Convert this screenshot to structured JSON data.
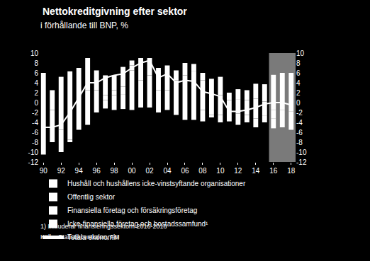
{
  "chart_data": {
    "type": "bar",
    "stacked": true,
    "title": "Nettokreditgivning efter sektor",
    "subtitle": "i förhållande till BNP, %",
    "annotations": [
      "1) Inkluderar finansieringssektorn 2016-2018",
      "Källa: Statistikcentralen, FM"
    ],
    "categories": [
      "90",
      null,
      "92",
      null,
      "94",
      null,
      "96",
      null,
      "98",
      null,
      "00",
      null,
      "02",
      null,
      "04",
      null,
      "06",
      null,
      "08",
      null,
      "10",
      null,
      "12",
      null,
      "14",
      null,
      "16",
      null,
      "18"
    ],
    "shaded_from": "16",
    "series": [
      {
        "name": "Hushåll och hushållens icke-vinstsyftande organisationer",
        "type": "bar",
        "color": "#ffffff",
        "values": [
          -3,
          1,
          3,
          4,
          2,
          2.5,
          1,
          0.5,
          -1.5,
          -1.3,
          -1.5,
          -1,
          -1,
          -2,
          -1.5,
          -2.5,
          -3.5,
          -3.5,
          -1.5,
          2,
          1.5,
          0.5,
          0.7,
          0.5,
          0.8,
          0.2,
          -1.5,
          -1.5,
          -1.8
        ]
      },
      {
        "name": "Offentlig sektor",
        "type": "bar",
        "color": "#ffffff",
        "values": [
          5,
          -1.5,
          -5.5,
          -7.5,
          -5.5,
          -4.5,
          -2,
          -1.2,
          1.5,
          1.7,
          6.5,
          4.5,
          4,
          2.5,
          2.5,
          3,
          4,
          5,
          4.5,
          -2.5,
          -2.5,
          -1,
          -2.2,
          -2.5,
          -3.2,
          -2.7,
          -1.7,
          -1.5,
          -1.2
        ]
      },
      {
        "name": "Finansiella företag och försäkringsföretag",
        "type": "bar",
        "color": "#ffffff",
        "values": [
          1,
          1.5,
          2.2,
          2.3,
          1,
          1.5,
          1.5,
          1,
          1,
          1.5,
          1,
          1.5,
          1.5,
          1.5,
          1.5,
          1.5,
          1.5,
          1.3,
          1.5,
          2.8,
          3.7,
          1.5,
          2,
          2,
          3,
          3.5,
          -2,
          -2,
          -2.5
        ]
      },
      {
        "name": "Icke-finansiella företag och bostadssamfund¹",
        "type": "bar",
        "color": "#ffffff",
        "values": [
          -7.5,
          -6.5,
          -4.5,
          -0.5,
          4,
          5,
          4,
          4,
          3,
          4,
          1,
          3,
          3.5,
          3,
          3.5,
          2,
          2.5,
          1.5,
          -2.3,
          -0.5,
          -1.5,
          -2.8,
          -2.3,
          -1.5,
          -1.8,
          -1.3,
          5.6,
          6,
          6
        ]
      },
      {
        "name": "Totala ekonomin",
        "type": "line",
        "color": "#ffffff",
        "values": [
          -5,
          -5,
          -4.5,
          -2,
          1,
          4,
          4,
          5,
          5.5,
          5.8,
          7,
          8,
          8.5,
          5,
          5.8,
          4,
          4.5,
          4.3,
          2.2,
          1.8,
          1.2,
          -1.8,
          -1.8,
          -1.5,
          -1,
          -0.3,
          0,
          0,
          -0.5
        ]
      }
    ],
    "ylim": [
      -12,
      10
    ],
    "yticks": [
      -12,
      -10,
      -8,
      -6,
      -4,
      -2,
      0,
      2,
      4,
      6,
      8,
      10
    ],
    "y2lim": [
      -12,
      10
    ],
    "y2ticks": [
      -12,
      -10,
      -8,
      -6,
      -4,
      -2,
      0,
      2,
      4,
      6,
      8,
      10
    ],
    "grid": false,
    "legend": "bottom"
  }
}
